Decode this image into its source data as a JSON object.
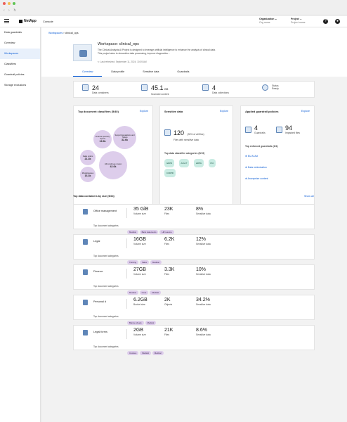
{
  "browser": {
    "nav": "‹ › ↻"
  },
  "topbar": {
    "brand": "NetApp",
    "console": "Console",
    "org_label": "Organization",
    "org_value": "Org name",
    "project_label": "Project",
    "project_value": "Project name"
  },
  "sidebar": {
    "items": [
      "Data guardrails",
      "Overview",
      "Workspaces",
      "Classifiers",
      "Guardrail policies",
      "Storage exclusions"
    ]
  },
  "breadcrumb": {
    "root": "Workspaces",
    "current": "clinical_ops"
  },
  "workspace": {
    "title": "Workspace: clinical_ops",
    "description": "The Clinical Analysis AI Project is designed to leverage artificial intelligence to enhance the analysis of clinical data. This project aims to streamline data processing, improve diagnostics...",
    "refreshed": "Last refreshed: September 11, 2024, 10:05 AM"
  },
  "tabs": [
    "Overview",
    "Data profile",
    "Sensitive data",
    "Guardrails"
  ],
  "stats": [
    {
      "value": "24",
      "unit": "",
      "label": "Data containers"
    },
    {
      "value": "45.1",
      "unit": "GB",
      "label": "Scanned content"
    },
    {
      "value": "4",
      "unit": "",
      "label": "Data collections"
    },
    {
      "value": "Status",
      "unit": "",
      "label": "Ready"
    }
  ],
  "classifiers": {
    "title": "Top document classifiers (5/40)",
    "explore": "Explore",
    "bubbles": [
      {
        "name": "Finance quarterly reports",
        "value": "19.9k"
      },
      {
        "name": "Support Escalations and Tickets",
        "value": "32.6k"
      },
      {
        "name": "Sales orders",
        "value": "21.3k"
      },
      {
        "name": "Miscellaneous",
        "value": "16.3k"
      },
      {
        "name": "HR employee review",
        "value": "42.6k"
      }
    ]
  },
  "sensitive": {
    "title": "Sensitive data",
    "explore": "Explore",
    "count": "120",
    "pct": "(33% of all files)",
    "label": "Files with sensitive data",
    "cat_title": "Top data classifier categories (5/19)",
    "cats": [
      "GDPR",
      "AI ACT",
      "HIPPA",
      "PCI",
      "CCDPR"
    ]
  },
  "policies": {
    "title": "Applied guardrail policies",
    "explore": "Explore",
    "guardrails": "4",
    "guardrails_label": "Guardrails",
    "impacted": "94",
    "impacted_label": "Impacted files",
    "enforced_title": "Top enforced guardrails (3/4)",
    "items": [
      "EU AI Act",
      "Data minimization",
      "Anonymize content"
    ]
  },
  "containers": {
    "title": "Top data containers by size (5/24)",
    "show_all": "Show all",
    "cat_label": "Top document categories",
    "rows": [
      {
        "name": "Office management",
        "size": "35 GiB",
        "size_label": "Volume size",
        "files": "23K",
        "files_label": "Files",
        "sens": "8%",
        "tags": [
          "Medical",
          "Bank statements",
          "HR resume"
        ]
      },
      {
        "name": "Legal",
        "size": "16GB",
        "size_label": "Volume size",
        "files": "6.2K",
        "files_label": "Files",
        "sens": "12%",
        "tags": [
          "Training",
          "Sales",
          "Medical"
        ]
      },
      {
        "name": "Finance",
        "size": "27GB",
        "size_label": "Volume size",
        "files": "3.3K",
        "files_label": "Files",
        "sens": "10%",
        "tags": [
          "Medical",
          "Code",
          "Medical"
        ]
      },
      {
        "name": "Personal d",
        "size": "6.2GB",
        "size_label": "Bucket size",
        "files": "2K",
        "files_label": "Objects",
        "sens": "34.2%",
        "tags": [
          "Blance sheets",
          "Medical"
        ]
      },
      {
        "name": "Legal forms",
        "size": "2GB",
        "size_label": "Volume size",
        "files": "21K",
        "files_label": "Files",
        "sens": "8.6%",
        "tags": [
          "Invoices",
          "Medical",
          "Medical"
        ]
      }
    ],
    "sens_label": "Sensitive data"
  }
}
